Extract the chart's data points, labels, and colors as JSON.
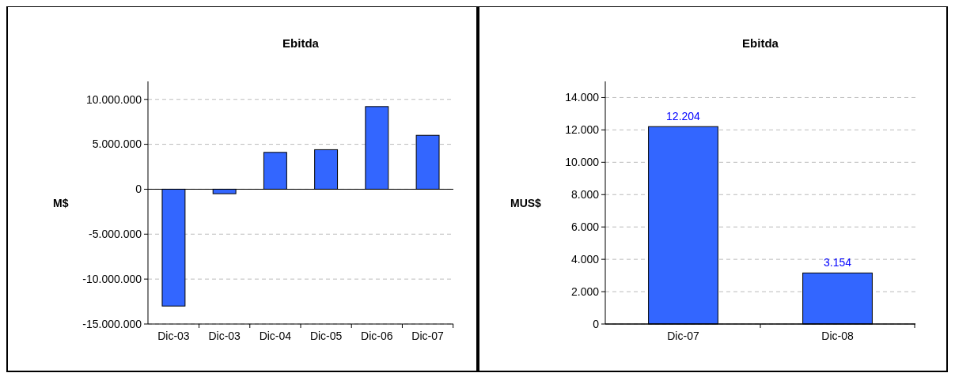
{
  "chart_data": [
    {
      "type": "bar",
      "title": "Ebitda",
      "ylabel": "M$",
      "categories": [
        "Dic-03",
        "Dic-03",
        "Dic-04",
        "Dic-05",
        "Dic-06",
        "Dic-07"
      ],
      "series": [
        {
          "color": "#3366ff",
          "values": [
            -13000000,
            -500000,
            4100000,
            4400000,
            9200000,
            6000000
          ]
        }
      ],
      "ylim": [
        -15000000,
        12000000
      ],
      "yticks": [
        {
          "value": -15000000,
          "label": "-15.000.000"
        },
        {
          "value": -10000000,
          "label": "-10.000.000"
        },
        {
          "value": -5000000,
          "label": "-5.000.000"
        },
        {
          "value": 0,
          "label": "0"
        },
        {
          "value": 5000000,
          "label": "5.000.000"
        },
        {
          "value": 10000000,
          "label": "10.000.000"
        }
      ],
      "grid": "y"
    },
    {
      "type": "bar",
      "title": "Ebitda",
      "ylabel": "MUS$",
      "categories": [
        "Dic-07",
        "Dic-08"
      ],
      "series": [
        {
          "color": "#3366ff",
          "values": [
            12204,
            3154
          ],
          "value_labels": [
            "12.204",
            "3.154"
          ]
        }
      ],
      "ylim": [
        0,
        15000
      ],
      "yticks": [
        {
          "value": 0,
          "label": "0"
        },
        {
          "value": 2000,
          "label": "2.000"
        },
        {
          "value": 4000,
          "label": "4.000"
        },
        {
          "value": 6000,
          "label": "6.000"
        },
        {
          "value": 8000,
          "label": "8.000"
        },
        {
          "value": 10000,
          "label": "10.000"
        },
        {
          "value": 12000,
          "label": "12.000"
        },
        {
          "value": 14000,
          "label": "14.000"
        }
      ],
      "grid": "y"
    }
  ]
}
